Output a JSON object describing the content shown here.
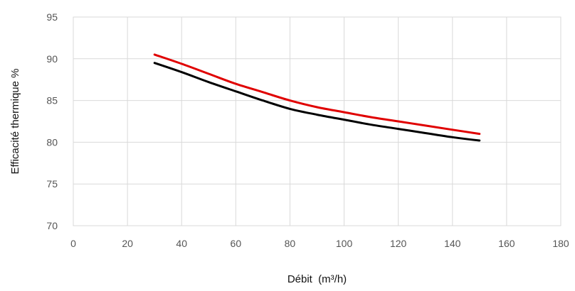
{
  "chart_data": {
    "type": "line",
    "title": "",
    "xlabel": "Débit  (m³/h)",
    "ylabel": "Efficacité thermique %",
    "xlim": [
      0,
      180
    ],
    "ylim": [
      70,
      95
    ],
    "x_ticks": [
      0,
      20,
      40,
      60,
      80,
      100,
      120,
      140,
      160,
      180
    ],
    "y_ticks": [
      70,
      75,
      80,
      85,
      90,
      95
    ],
    "grid": true,
    "legend": "none",
    "series": [
      {
        "color": "#e00000",
        "x": [
          30,
          40,
          50,
          60,
          70,
          80,
          90,
          100,
          110,
          120,
          130,
          140,
          150
        ],
        "y": [
          90.5,
          89.4,
          88.2,
          87.0,
          86.0,
          85.0,
          84.2,
          83.6,
          83.0,
          82.5,
          82.0,
          81.5,
          81.0
        ]
      },
      {
        "color": "#000000",
        "x": [
          30,
          40,
          50,
          60,
          70,
          80,
          90,
          100,
          110,
          120,
          130,
          140,
          150
        ],
        "y": [
          89.5,
          88.4,
          87.2,
          86.1,
          85.0,
          84.0,
          83.3,
          82.7,
          82.1,
          81.6,
          81.1,
          80.6,
          80.2
        ]
      }
    ]
  }
}
